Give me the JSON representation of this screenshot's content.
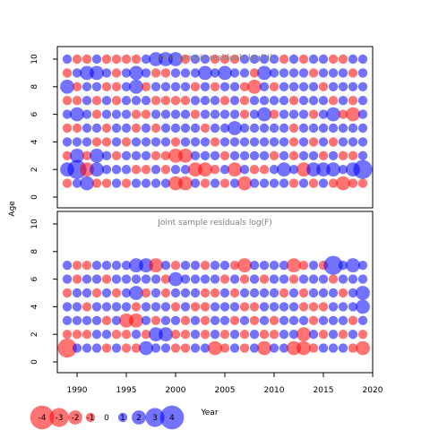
{
  "chart_data": [
    {
      "type": "scatter",
      "title": "Joint sample residuals log(N)",
      "xlabel": "",
      "ylabel": "Age",
      "xlim": [
        1988,
        2020
      ],
      "ylim": [
        0,
        11
      ],
      "yticks": [
        0,
        2,
        4,
        6,
        8,
        10
      ],
      "ages": [
        1,
        2,
        3,
        4,
        5,
        6,
        7,
        8,
        9,
        10
      ],
      "years": [
        1989,
        1990,
        1991,
        1992,
        1993,
        1994,
        1995,
        1996,
        1997,
        1998,
        1999,
        2000,
        2001,
        2002,
        2003,
        2004,
        2005,
        2006,
        2007,
        2008,
        2009,
        2010,
        2011,
        2012,
        2013,
        2014,
        2015,
        2016,
        2017,
        2018,
        2019
      ],
      "residuals_by_year": [
        [
          -1,
          2,
          -1,
          1,
          -1,
          1,
          -1,
          2,
          -1,
          1
        ],
        [
          1,
          3,
          2,
          1,
          -1,
          2,
          -1,
          -1,
          1,
          -1
        ],
        [
          2,
          -2,
          -1,
          1,
          1,
          1,
          1,
          1,
          2,
          -1
        ],
        [
          -1,
          2,
          2,
          -1,
          1,
          -1,
          -1,
          1,
          2,
          1
        ],
        [
          -1,
          1,
          1,
          -1,
          -1,
          1,
          1,
          -1,
          1,
          -1
        ],
        [
          1,
          1,
          -1,
          1,
          1,
          1,
          -1,
          -1,
          -1,
          -1
        ],
        [
          -1,
          1,
          1,
          -1,
          1,
          1,
          1,
          1,
          1,
          -1
        ],
        [
          1,
          -1,
          1,
          1,
          -1,
          -1,
          1,
          2,
          2,
          -1
        ],
        [
          1,
          -1,
          1,
          1,
          1,
          -1,
          1,
          -1,
          1,
          1
        ],
        [
          1,
          1,
          -1,
          1,
          -1,
          1,
          -1,
          1,
          -1,
          2
        ],
        [
          1,
          -1,
          -1,
          1,
          1,
          1,
          -1,
          1,
          -1,
          2
        ],
        [
          -2,
          1,
          -2,
          -1,
          1,
          1,
          -1,
          1,
          1,
          2
        ],
        [
          -2,
          1,
          -2,
          1,
          1,
          1,
          -1,
          1,
          1,
          -1
        ],
        [
          1,
          -2,
          1,
          1,
          1,
          -1,
          1,
          -1,
          1,
          1
        ],
        [
          -1,
          -2,
          1,
          1,
          -1,
          1,
          1,
          1,
          2,
          1
        ],
        [
          1,
          -1,
          1,
          -1,
          1,
          1,
          1,
          -1,
          1,
          -1
        ],
        [
          -1,
          1,
          -1,
          1,
          1,
          1,
          -1,
          1,
          2,
          -1
        ],
        [
          1,
          -2,
          1,
          1,
          2,
          1,
          1,
          1,
          1,
          -1
        ],
        [
          -2,
          1,
          1,
          1,
          1,
          -1,
          -1,
          -1,
          1,
          1
        ],
        [
          1,
          -1,
          1,
          1,
          1,
          1,
          1,
          -2,
          -1,
          1
        ],
        [
          1,
          -1,
          1,
          1,
          1,
          2,
          1,
          1,
          2,
          1
        ],
        [
          1,
          1,
          -1,
          1,
          1,
          -1,
          1,
          -1,
          1,
          1
        ],
        [
          1,
          2,
          1,
          1,
          1,
          1,
          1,
          1,
          1,
          -1
        ],
        [
          -1,
          1,
          -1,
          -1,
          -1,
          1,
          -1,
          1,
          1,
          1
        ],
        [
          1,
          -2,
          1,
          1,
          1,
          1,
          1,
          1,
          1,
          -1
        ],
        [
          -1,
          2,
          1,
          -1,
          1,
          -1,
          1,
          1,
          -1,
          1
        ],
        [
          1,
          2,
          -1,
          1,
          1,
          1,
          1,
          -1,
          1,
          1
        ],
        [
          -1,
          2,
          1,
          -1,
          1,
          2,
          -1,
          1,
          1,
          -1
        ],
        [
          -2,
          1,
          -1,
          1,
          1,
          -1,
          1,
          1,
          1,
          -1
        ],
        [
          -1,
          2,
          -1,
          1,
          1,
          -2,
          -1,
          1,
          -1,
          1
        ],
        [
          -1,
          3,
          1,
          1,
          1,
          1,
          1,
          1,
          1,
          1
        ]
      ]
    },
    {
      "type": "scatter",
      "title": "Joint sample residuals log(F)",
      "xlabel": "Year",
      "ylabel": "",
      "xlim": [
        1988,
        2020
      ],
      "ylim": [
        0,
        11
      ],
      "yticks": [
        0,
        2,
        4,
        6,
        8,
        10
      ],
      "xticks": [
        1990,
        1995,
        2000,
        2005,
        2010,
        2015,
        2020
      ],
      "ages": [
        1,
        2,
        3,
        4,
        5,
        6,
        7
      ],
      "years": [
        1989,
        1990,
        1991,
        1992,
        1993,
        1994,
        1995,
        1996,
        1997,
        1998,
        1999,
        2000,
        2001,
        2002,
        2003,
        2004,
        2005,
        2006,
        2007,
        2008,
        2009,
        2010,
        2011,
        2012,
        2013,
        2014,
        2015,
        2016,
        2017,
        2018,
        2019
      ],
      "residuals_by_year": [
        [
          -3,
          -1,
          1,
          1,
          -1,
          1,
          1
        ],
        [
          1,
          -1,
          1,
          1,
          1,
          -1,
          -1
        ],
        [
          1,
          -1,
          1,
          -1,
          1,
          1,
          -1
        ],
        [
          1,
          1,
          1,
          1,
          -1,
          1,
          1
        ],
        [
          -1,
          1,
          -1,
          1,
          1,
          -1,
          1
        ],
        [
          1,
          -1,
          1,
          1,
          -1,
          1,
          1
        ],
        [
          -1,
          -1,
          -2,
          1,
          1,
          1,
          1
        ],
        [
          -1,
          1,
          -2,
          -1,
          2,
          1,
          2
        ],
        [
          2,
          -1,
          1,
          1,
          -1,
          1,
          2
        ],
        [
          1,
          2,
          -1,
          1,
          1,
          1,
          -2
        ],
        [
          1,
          2,
          1,
          1,
          -1,
          -1,
          1
        ],
        [
          -1,
          -1,
          1,
          -1,
          1,
          2,
          -1
        ],
        [
          -1,
          -1,
          -1,
          1,
          1,
          1,
          1
        ],
        [
          1,
          1,
          1,
          -1,
          1,
          1,
          1
        ],
        [
          1,
          -1,
          -1,
          -1,
          -1,
          1,
          -1
        ],
        [
          -2,
          1,
          1,
          1,
          -1,
          1,
          1
        ],
        [
          -1,
          -1,
          1,
          1,
          1,
          -1,
          1
        ],
        [
          1,
          1,
          -1,
          1,
          -1,
          1,
          -1
        ],
        [
          -1,
          -1,
          1,
          -1,
          1,
          -1,
          -2
        ],
        [
          1,
          1,
          -1,
          -1,
          1,
          1,
          1
        ],
        [
          -2,
          -1,
          1,
          1,
          1,
          -1,
          1
        ],
        [
          1,
          -1,
          -1,
          1,
          1,
          1,
          1
        ],
        [
          1,
          1,
          1,
          1,
          -1,
          1,
          1
        ],
        [
          -2,
          1,
          1,
          1,
          1,
          -1,
          -2
        ],
        [
          -2,
          -2,
          1,
          -1,
          -1,
          1,
          -1
        ],
        [
          -1,
          1,
          -1,
          -1,
          1,
          1,
          1
        ],
        [
          1,
          -1,
          1,
          -1,
          1,
          1,
          -1
        ],
        [
          1,
          1,
          1,
          1,
          1,
          -1,
          3
        ],
        [
          1,
          -1,
          1,
          1,
          -1,
          1,
          1
        ],
        [
          -1,
          1,
          -1,
          1,
          1,
          1,
          2
        ],
        [
          -2,
          -1,
          1,
          2,
          2,
          1,
          1
        ]
      ]
    }
  ],
  "legend": {
    "values": [
      -4,
      -3,
      -2,
      -1,
      0,
      1,
      2,
      3,
      4
    ],
    "labels": [
      "-4",
      "-3",
      "-2",
      "-1",
      "0",
      "1",
      "2",
      "3",
      "4"
    ]
  },
  "colors": {
    "negative": "#ff0000",
    "positive": "#0000ff",
    "fill_opacity": "0.55",
    "axis": "#000000",
    "title_text": "#808080"
  }
}
